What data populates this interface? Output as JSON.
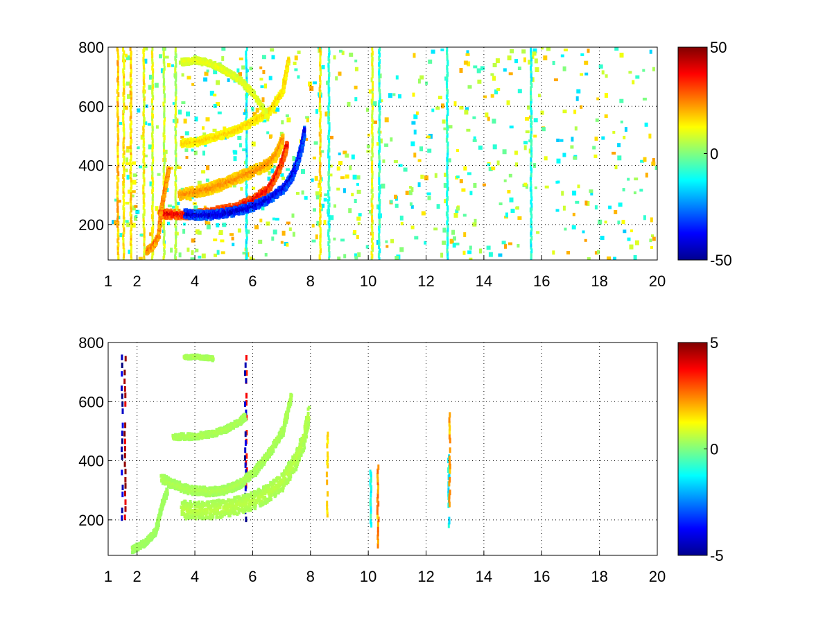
{
  "chart_data": [
    {
      "type": "heatmap",
      "title": "",
      "xlabel": "",
      "ylabel": "",
      "xlim": [
        1,
        20
      ],
      "ylim": [
        80,
        800
      ],
      "x_ticks": [
        1,
        2,
        4,
        6,
        8,
        10,
        12,
        14,
        16,
        18,
        20
      ],
      "x_tick_labels": [
        "1",
        "2",
        "4",
        "6",
        "8",
        "10",
        "12",
        "14",
        "16",
        "18",
        "20"
      ],
      "y_ticks": [
        200,
        400,
        600,
        800
      ],
      "y_tick_labels": [
        "200",
        "400",
        "600",
        "800"
      ],
      "grid": true,
      "grid_style": "dotted",
      "colormap": "jet",
      "clim": [
        -50,
        50
      ],
      "colorbar_ticks": [
        50,
        0,
        -50
      ],
      "colorbar_tick_labels": [
        "50",
        "0",
        "-50"
      ],
      "features": {
        "curves": [
          {
            "x": [
              2.75,
              3.0,
              3.5,
              4.0,
              4.5,
              5.0,
              5.5,
              6.0,
              6.5,
              6.8,
              7.0,
              7.15
            ],
            "y": [
              240,
              235,
              233,
              235,
              240,
              250,
              262,
              285,
              320,
              370,
              420,
              470
            ],
            "value": 42,
            "spread": 14
          },
          {
            "x": [
              3.6,
              4.0,
              4.5,
              5.0,
              5.5,
              6.0,
              6.5,
              7.0,
              7.3,
              7.5,
              7.65,
              7.75
            ],
            "y": [
              236,
              232,
              231,
              238,
              248,
              262,
              285,
              320,
              360,
              410,
              460,
              520
            ],
            "value": -45,
            "spread": 14
          },
          {
            "x": [
              3.4,
              4.0,
              4.5,
              5.0,
              5.5,
              6.0,
              6.5,
              6.8,
              7.0
            ],
            "y": [
              300,
              310,
              322,
              340,
              360,
              380,
              405,
              440,
              490
            ],
            "value": 25,
            "spread": 18
          },
          {
            "x": [
              2.3,
              2.5,
              2.7,
              2.8,
              2.95,
              3.05
            ],
            "y": [
              110,
              125,
              160,
              260,
              330,
              390
            ],
            "value": 30,
            "spread": 10
          },
          {
            "x": [
              3.5,
              4.0,
              4.5,
              5.0,
              5.5,
              6.0,
              6.5,
              7.0,
              7.2
            ],
            "y": [
              475,
              478,
              492,
              505,
              525,
              550,
              580,
              650,
              760
            ],
            "value": 18,
            "spread": 12
          },
          {
            "x": [
              3.5,
              4.0,
              4.5,
              5.0,
              5.5,
              6.0,
              6.5
            ],
            "y": [
              750,
              755,
              745,
              720,
              690,
              640,
              560
            ],
            "value": 12,
            "spread": 10
          }
        ],
        "vertical_streaks": [
          {
            "x": 1.3,
            "value": 18
          },
          {
            "x": 1.5,
            "value": 14
          },
          {
            "x": 1.75,
            "value": 16
          },
          {
            "x": 2.2,
            "value": 12
          },
          {
            "x": 2.5,
            "value": 10
          },
          {
            "x": 2.9,
            "value": 8
          },
          {
            "x": 3.3,
            "value": 6
          },
          {
            "x": 5.75,
            "value": -12
          },
          {
            "x": 8.3,
            "value": 14
          },
          {
            "x": 8.6,
            "value": -8
          },
          {
            "x": 10.1,
            "value": 10
          },
          {
            "x": 10.35,
            "value": -8
          },
          {
            "x": 12.7,
            "value": -10
          },
          {
            "x": 15.6,
            "value": -10
          }
        ]
      }
    },
    {
      "type": "heatmap",
      "title": "",
      "xlabel": "",
      "ylabel": "",
      "xlim": [
        1,
        20
      ],
      "ylim": [
        80,
        800
      ],
      "x_ticks": [
        1,
        2,
        4,
        6,
        8,
        10,
        12,
        14,
        16,
        18,
        20
      ],
      "x_tick_labels": [
        "1",
        "2",
        "4",
        "6",
        "8",
        "10",
        "12",
        "14",
        "16",
        "18",
        "20"
      ],
      "y_ticks": [
        200,
        400,
        600,
        800
      ],
      "y_tick_labels": [
        "200",
        "400",
        "600",
        "800"
      ],
      "grid": true,
      "grid_style": "dotted",
      "colormap": "jet",
      "clim": [
        -5,
        5
      ],
      "colorbar_ticks": [
        5,
        0,
        -5
      ],
      "colorbar_tick_labels": [
        "5",
        "0",
        "-5"
      ],
      "features": {
        "curves": [
          {
            "x": [
              3.5,
              4.0,
              4.5,
              5.0,
              5.5,
              6.0,
              6.5,
              7.0,
              7.4,
              7.7,
              7.9
            ],
            "y": [
              235,
              230,
              232,
              240,
              250,
              265,
              290,
              330,
              390,
              460,
              560
            ],
            "value": 0.6,
            "spread": 30
          },
          {
            "x": [
              2.8,
              3.2,
              3.8,
              4.5,
              5.0,
              5.5,
              6.0,
              6.5,
              7.0,
              7.3
            ],
            "y": [
              340,
              320,
              300,
              295,
              300,
              320,
              360,
              420,
              500,
              620
            ],
            "value": 0.5,
            "spread": 14
          },
          {
            "x": [
              1.8,
              2.2,
              2.6,
              2.8,
              3.0
            ],
            "y": [
              100,
              120,
              160,
              240,
              300
            ],
            "value": 0.4,
            "spread": 10
          },
          {
            "x": [
              3.2,
              4.0,
              4.5,
              5.0,
              5.5,
              5.7
            ],
            "y": [
              480,
              483,
              490,
              505,
              530,
              550
            ],
            "value": 0.5,
            "spread": 10
          },
          {
            "x": [
              3.6,
              4.0,
              4.6
            ],
            "y": [
              750,
              752,
              745
            ],
            "value": 0.5,
            "spread": 6
          }
        ],
        "vertical_streaks": [
          {
            "x": 1.45,
            "value": -4.5
          },
          {
            "x": 1.55,
            "value": 4.5
          },
          {
            "x": 5.75,
            "value": 4.0
          },
          {
            "x": 5.72,
            "value": -4.5
          },
          {
            "x": 8.55,
            "value": 1.8
          },
          {
            "x": 10.05,
            "value": -1.0
          },
          {
            "x": 10.3,
            "value": 2.2
          },
          {
            "x": 12.75,
            "value": -1.2
          },
          {
            "x": 12.78,
            "value": 2.0
          }
        ]
      }
    }
  ]
}
